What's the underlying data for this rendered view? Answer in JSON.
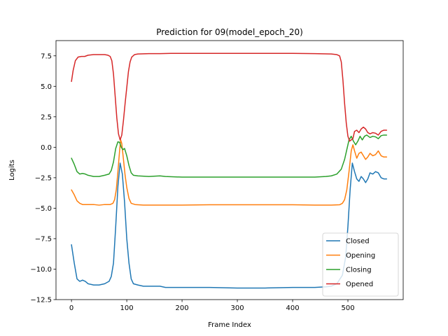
{
  "chart_data": {
    "type": "line",
    "title": "Prediction for 09(model_epoch_20)",
    "xlabel": "Frame Index",
    "ylabel": "Logits",
    "xlim": [
      -28,
      600
    ],
    "ylim": [
      -12.5,
      8.75
    ],
    "xticks": [
      0,
      100,
      200,
      300,
      400,
      500
    ],
    "yticks": [
      -12.5,
      -10.0,
      -7.5,
      -5.0,
      -2.5,
      0.0,
      2.5,
      5.0,
      7.5
    ],
    "ytick_labels": [
      "−12.5",
      "−10.0",
      "−7.5",
      "−5.0",
      "−2.5",
      "0.0",
      "2.5",
      "5.0",
      "7.5"
    ],
    "grid": false,
    "legend_position": "lower-right",
    "series": [
      {
        "name": "Closed",
        "color": "#1f77b4",
        "points": [
          [
            0,
            -8.0
          ],
          [
            5,
            -9.5
          ],
          [
            10,
            -10.8
          ],
          [
            15,
            -11.0
          ],
          [
            20,
            -10.9
          ],
          [
            25,
            -11.0
          ],
          [
            30,
            -11.2
          ],
          [
            40,
            -11.3
          ],
          [
            50,
            -11.3
          ],
          [
            60,
            -11.2
          ],
          [
            68,
            -11.0
          ],
          [
            72,
            -10.6
          ],
          [
            76,
            -9.5
          ],
          [
            80,
            -6.5
          ],
          [
            84,
            -3.2
          ],
          [
            88,
            -1.3
          ],
          [
            92,
            -2.2
          ],
          [
            96,
            -4.5
          ],
          [
            100,
            -7.5
          ],
          [
            104,
            -9.5
          ],
          [
            108,
            -10.8
          ],
          [
            112,
            -11.2
          ],
          [
            120,
            -11.3
          ],
          [
            130,
            -11.4
          ],
          [
            140,
            -11.4
          ],
          [
            150,
            -11.4
          ],
          [
            160,
            -11.4
          ],
          [
            170,
            -11.5
          ],
          [
            200,
            -11.5
          ],
          [
            250,
            -11.5
          ],
          [
            300,
            -11.55
          ],
          [
            350,
            -11.55
          ],
          [
            400,
            -11.5
          ],
          [
            440,
            -11.5
          ],
          [
            460,
            -11.45
          ],
          [
            470,
            -11.4
          ],
          [
            480,
            -11.2
          ],
          [
            490,
            -10.5
          ],
          [
            496,
            -9.0
          ],
          [
            500,
            -6.5
          ],
          [
            504,
            -3.5
          ],
          [
            508,
            -1.3
          ],
          [
            512,
            -2.0
          ],
          [
            516,
            -2.6
          ],
          [
            520,
            -2.8
          ],
          [
            524,
            -2.4
          ],
          [
            528,
            -2.6
          ],
          [
            532,
            -2.9
          ],
          [
            536,
            -2.6
          ],
          [
            540,
            -2.1
          ],
          [
            545,
            -2.2
          ],
          [
            550,
            -2.0
          ],
          [
            555,
            -2.1
          ],
          [
            560,
            -2.5
          ],
          [
            565,
            -2.6
          ],
          [
            570,
            -2.6
          ]
        ]
      },
      {
        "name": "Opening",
        "color": "#ff7f0e",
        "points": [
          [
            0,
            -3.5
          ],
          [
            5,
            -3.9
          ],
          [
            10,
            -4.4
          ],
          [
            15,
            -4.6
          ],
          [
            20,
            -4.7
          ],
          [
            30,
            -4.7
          ],
          [
            40,
            -4.7
          ],
          [
            50,
            -4.75
          ],
          [
            60,
            -4.7
          ],
          [
            70,
            -4.7
          ],
          [
            75,
            -4.6
          ],
          [
            78,
            -4.3
          ],
          [
            81,
            -3.5
          ],
          [
            84,
            -2.0
          ],
          [
            87,
            -0.3
          ],
          [
            89,
            0.6
          ],
          [
            91,
            0.3
          ],
          [
            94,
            -1.0
          ],
          [
            97,
            -2.3
          ],
          [
            100,
            -3.3
          ],
          [
            104,
            -4.2
          ],
          [
            108,
            -4.6
          ],
          [
            115,
            -4.7
          ],
          [
            130,
            -4.75
          ],
          [
            150,
            -4.75
          ],
          [
            200,
            -4.75
          ],
          [
            250,
            -4.72
          ],
          [
            300,
            -4.72
          ],
          [
            350,
            -4.72
          ],
          [
            400,
            -4.72
          ],
          [
            440,
            -4.75
          ],
          [
            470,
            -4.75
          ],
          [
            485,
            -4.72
          ],
          [
            490,
            -4.6
          ],
          [
            494,
            -4.3
          ],
          [
            498,
            -3.5
          ],
          [
            502,
            -2.0
          ],
          [
            506,
            -0.3
          ],
          [
            509,
            0.2
          ],
          [
            512,
            -0.3
          ],
          [
            516,
            -0.9
          ],
          [
            520,
            -0.5
          ],
          [
            524,
            -0.4
          ],
          [
            528,
            -0.7
          ],
          [
            532,
            -1.0
          ],
          [
            536,
            -0.8
          ],
          [
            540,
            -0.5
          ],
          [
            545,
            -0.7
          ],
          [
            550,
            -0.6
          ],
          [
            555,
            -0.3
          ],
          [
            560,
            -0.7
          ],
          [
            565,
            -0.8
          ],
          [
            570,
            -0.8
          ]
        ]
      },
      {
        "name": "Closing",
        "color": "#2ca02c",
        "points": [
          [
            0,
            -0.9
          ],
          [
            5,
            -1.4
          ],
          [
            10,
            -2.0
          ],
          [
            15,
            -2.2
          ],
          [
            20,
            -2.15
          ],
          [
            25,
            -2.2
          ],
          [
            30,
            -2.3
          ],
          [
            40,
            -2.4
          ],
          [
            50,
            -2.4
          ],
          [
            60,
            -2.3
          ],
          [
            68,
            -2.2
          ],
          [
            72,
            -1.9
          ],
          [
            76,
            -1.2
          ],
          [
            80,
            -0.1
          ],
          [
            84,
            0.45
          ],
          [
            87,
            0.4
          ],
          [
            90,
            0.0
          ],
          [
            93,
            -0.2
          ],
          [
            96,
            -0.1
          ],
          [
            100,
            -0.7
          ],
          [
            104,
            -1.5
          ],
          [
            108,
            -2.1
          ],
          [
            112,
            -2.3
          ],
          [
            120,
            -2.35
          ],
          [
            140,
            -2.4
          ],
          [
            160,
            -2.35
          ],
          [
            170,
            -2.4
          ],
          [
            200,
            -2.45
          ],
          [
            250,
            -2.45
          ],
          [
            300,
            -2.45
          ],
          [
            350,
            -2.45
          ],
          [
            400,
            -2.45
          ],
          [
            440,
            -2.45
          ],
          [
            460,
            -2.4
          ],
          [
            470,
            -2.35
          ],
          [
            480,
            -2.2
          ],
          [
            488,
            -1.8
          ],
          [
            494,
            -1.0
          ],
          [
            498,
            -0.2
          ],
          [
            502,
            0.6
          ],
          [
            506,
            0.9
          ],
          [
            510,
            0.5
          ],
          [
            514,
            0.2
          ],
          [
            518,
            0.5
          ],
          [
            522,
            0.9
          ],
          [
            526,
            0.6
          ],
          [
            530,
            0.9
          ],
          [
            534,
            1.0
          ],
          [
            540,
            0.8
          ],
          [
            545,
            0.9
          ],
          [
            550,
            0.85
          ],
          [
            555,
            0.7
          ],
          [
            560,
            0.95
          ],
          [
            565,
            1.0
          ],
          [
            570,
            1.0
          ]
        ]
      },
      {
        "name": "Opened",
        "color": "#d62728",
        "points": [
          [
            0,
            5.4
          ],
          [
            3,
            6.3
          ],
          [
            7,
            7.1
          ],
          [
            12,
            7.4
          ],
          [
            18,
            7.45
          ],
          [
            24,
            7.45
          ],
          [
            30,
            7.55
          ],
          [
            40,
            7.6
          ],
          [
            50,
            7.6
          ],
          [
            60,
            7.6
          ],
          [
            66,
            7.55
          ],
          [
            70,
            7.45
          ],
          [
            73,
            7.1
          ],
          [
            76,
            6.0
          ],
          [
            79,
            4.2
          ],
          [
            82,
            2.4
          ],
          [
            85,
            1.1
          ],
          [
            88,
            0.6
          ],
          [
            91,
            1.0
          ],
          [
            94,
            2.2
          ],
          [
            97,
            3.6
          ],
          [
            100,
            4.9
          ],
          [
            103,
            6.2
          ],
          [
            106,
            7.0
          ],
          [
            109,
            7.4
          ],
          [
            114,
            7.6
          ],
          [
            120,
            7.65
          ],
          [
            140,
            7.68
          ],
          [
            160,
            7.68
          ],
          [
            180,
            7.7
          ],
          [
            250,
            7.7
          ],
          [
            300,
            7.7
          ],
          [
            350,
            7.7
          ],
          [
            400,
            7.7
          ],
          [
            440,
            7.68
          ],
          [
            470,
            7.65
          ],
          [
            480,
            7.6
          ],
          [
            485,
            7.5
          ],
          [
            488,
            7.0
          ],
          [
            491,
            5.5
          ],
          [
            494,
            3.6
          ],
          [
            497,
            2.0
          ],
          [
            500,
            0.9
          ],
          [
            503,
            0.5
          ],
          [
            506,
            0.6
          ],
          [
            509,
            0.7
          ],
          [
            512,
            1.3
          ],
          [
            516,
            1.4
          ],
          [
            520,
            1.2
          ],
          [
            524,
            1.5
          ],
          [
            528,
            1.65
          ],
          [
            532,
            1.5
          ],
          [
            536,
            1.2
          ],
          [
            540,
            1.1
          ],
          [
            545,
            1.2
          ],
          [
            550,
            1.15
          ],
          [
            555,
            1.0
          ],
          [
            560,
            1.3
          ],
          [
            565,
            1.4
          ],
          [
            570,
            1.4
          ]
        ]
      }
    ]
  }
}
